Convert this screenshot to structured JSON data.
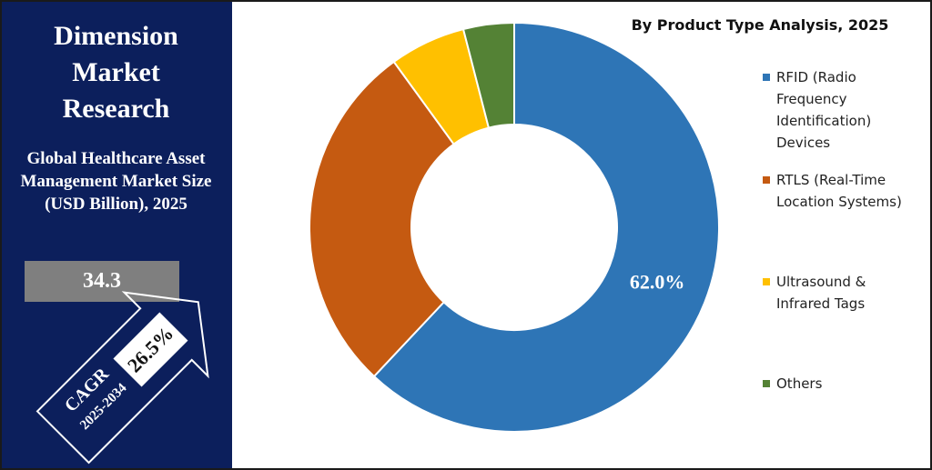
{
  "header": {
    "brand": "Dimension Market Research",
    "subtitle": "Global Healthcare Asset Management Market Size (USD Billion), 2025",
    "market_size": 34.3,
    "cagr_label": "CAGR",
    "cagr_period": "2025-2034",
    "cagr_value": "26.5%"
  },
  "chart_data": {
    "type": "donut",
    "title": "By Product Type Analysis, 2025",
    "categories": [
      "RFID (Radio Frequency Identification) Devices",
      "RTLS (Real-Time Location Systems)",
      "Ultrasound & Infrared Tags",
      "Others"
    ],
    "values": [
      62.0,
      28,
      6,
      4
    ],
    "value_labels": [
      "62.0%",
      null,
      null,
      null
    ],
    "colors": [
      "#2e75b6",
      "#c55a11",
      "#ffc000",
      "#548235"
    ],
    "legend": "right"
  }
}
